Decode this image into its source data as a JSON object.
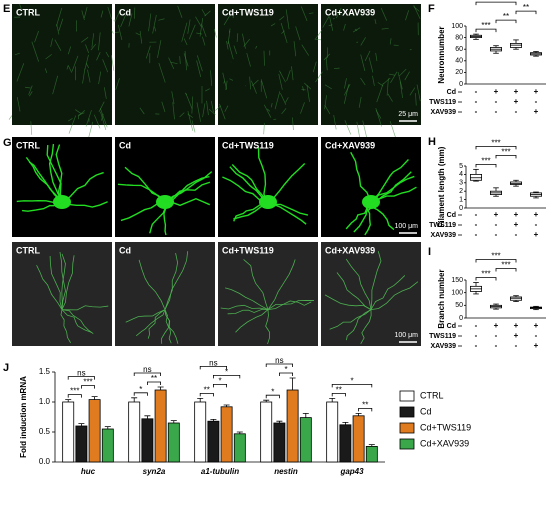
{
  "panel_labels": [
    "E",
    "F",
    "G",
    "H",
    "I",
    "J"
  ],
  "image_rows": [
    {
      "labels": [
        "CTRL",
        "Cd",
        "Cd+TWS119",
        "Cd+XAV939"
      ],
      "scale_bar": "25 μm"
    },
    {
      "labels": [
        "CTRL",
        "Cd",
        "Cd+TWS119",
        "Cd+XAV939"
      ],
      "scale_bar": "100 μm"
    },
    {
      "labels": [
        "CTRL",
        "Cd",
        "Cd+TWS119",
        "Cd+XAV939"
      ],
      "scale_bar": "100 μm"
    }
  ],
  "chart_data": [
    {
      "type": "box",
      "y_label": "Neuronnumber",
      "ylim": [
        0,
        100
      ],
      "yticks": [
        0,
        20,
        40,
        60,
        80,
        100
      ],
      "min": [
        77,
        53,
        60,
        48
      ],
      "q1": [
        80,
        57,
        63,
        50
      ],
      "median": [
        82,
        60,
        67,
        52
      ],
      "q3": [
        84,
        63,
        70,
        54
      ],
      "max": [
        86,
        66,
        76,
        56
      ],
      "conditions": [
        {
          "label": "Cd",
          "signs": [
            "-",
            "+",
            "+",
            "+"
          ]
        },
        {
          "label": "TWS119",
          "signs": [
            "-",
            "-",
            "+",
            "-"
          ]
        },
        {
          "label": "XAV939",
          "signs": [
            "-",
            "-",
            "-",
            "+"
          ]
        }
      ],
      "annotations": [
        {
          "text": "***",
          "between": [
            0,
            1
          ]
        },
        {
          "text": "**",
          "between": [
            1,
            2
          ]
        },
        {
          "text": "**",
          "between": [
            2,
            3
          ]
        },
        {
          "text": "***",
          "between": [
            0,
            2
          ]
        }
      ]
    },
    {
      "type": "box",
      "y_label": "Filament length (mm)",
      "ylim": [
        0,
        5
      ],
      "yticks": [
        0,
        1,
        2,
        3,
        4,
        5
      ],
      "min": [
        3.2,
        1.4,
        2.6,
        1.2
      ],
      "q1": [
        3.3,
        1.6,
        2.8,
        1.4
      ],
      "median": [
        3.6,
        1.8,
        2.9,
        1.6
      ],
      "q3": [
        4.0,
        2.0,
        3.1,
        1.8
      ],
      "max": [
        4.6,
        2.4,
        3.3,
        1.9
      ],
      "conditions": [
        {
          "label": "Cd",
          "signs": [
            "-",
            "+",
            "+",
            "+"
          ]
        },
        {
          "label": "TWS119",
          "signs": [
            "-",
            "-",
            "+",
            "-"
          ]
        },
        {
          "label": "XAV939",
          "signs": [
            "-",
            "-",
            "-",
            "+"
          ]
        }
      ],
      "annotations": [
        {
          "text": "***",
          "between": [
            0,
            1
          ]
        },
        {
          "text": "***",
          "between": [
            1,
            2
          ]
        },
        {
          "text": "***",
          "between": [
            0,
            2
          ]
        }
      ]
    },
    {
      "type": "box",
      "y_label": "Branch number",
      "ylim": [
        0,
        150
      ],
      "yticks": [
        0,
        50,
        100,
        150
      ],
      "min": [
        95,
        35,
        65,
        33
      ],
      "q1": [
        105,
        40,
        70,
        37
      ],
      "median": [
        115,
        45,
        78,
        40
      ],
      "q3": [
        125,
        50,
        83,
        43
      ],
      "max": [
        140,
        55,
        88,
        46
      ],
      "conditions": [
        {
          "label": "Cd",
          "signs": [
            "-",
            "+",
            "+",
            "+"
          ]
        },
        {
          "label": "TWS119",
          "signs": [
            "-",
            "-",
            "+",
            "-"
          ]
        },
        {
          "label": "XAV939",
          "signs": [
            "-",
            "-",
            "-",
            "+"
          ]
        }
      ],
      "annotations": [
        {
          "text": "***",
          "between": [
            0,
            1
          ]
        },
        {
          "text": "***",
          "between": [
            1,
            2
          ]
        },
        {
          "text": "***",
          "between": [
            0,
            2
          ]
        }
      ]
    },
    {
      "type": "bar",
      "y_label": "Fold induction mRNA",
      "ylim": [
        0,
        1.5
      ],
      "yticks": [
        {
          "value": 0,
          "label": "0.0"
        },
        0.5,
        {
          "value": 1,
          "label": "1.0"
        },
        1.5
      ],
      "categories": [
        "huc",
        "syn2a",
        "a1-tubulin",
        "nestin",
        "gap43"
      ],
      "series": [
        {
          "name": "CTRL",
          "color": "#ffffff",
          "values": [
            1.0,
            1.0,
            1.0,
            1.0,
            1.0
          ],
          "errors": [
            0.04,
            0.07,
            0.06,
            0.03,
            0.06
          ]
        },
        {
          "name": "Cd",
          "color": "#1a1a1a",
          "values": [
            0.6,
            0.72,
            0.68,
            0.65,
            0.62
          ],
          "errors": [
            0.04,
            0.05,
            0.03,
            0.03,
            0.04
          ]
        },
        {
          "name": "Cd+TWS119",
          "color": "#e07b20",
          "values": [
            1.04,
            1.2,
            0.92,
            1.2,
            0.77
          ],
          "errors": [
            0.05,
            0.05,
            0.03,
            0.2,
            0.04
          ]
        },
        {
          "name": "Cd+XAV939",
          "color": "#3aa84a",
          "values": [
            0.55,
            0.65,
            0.47,
            0.74,
            0.26
          ],
          "errors": [
            0.04,
            0.04,
            0.03,
            0.07,
            0.03
          ]
        }
      ],
      "annotations": [
        [
          {
            "text": "***",
            "between": [
              0,
              1
            ]
          },
          {
            "text": "***",
            "between": [
              1,
              2
            ]
          },
          {
            "text": "ns",
            "between": [
              0,
              2
            ]
          }
        ],
        [
          {
            "text": "*",
            "between": [
              0,
              1
            ]
          },
          {
            "text": "**",
            "between": [
              1,
              2
            ]
          },
          {
            "text": "ns",
            "between": [
              0,
              2
            ]
          }
        ],
        [
          {
            "text": "**",
            "between": [
              0,
              1
            ]
          },
          {
            "text": "*",
            "between": [
              1,
              2
            ]
          },
          {
            "text": "*",
            "between": [
              1,
              3
            ]
          },
          {
            "text": "ns",
            "between": [
              0,
              2
            ]
          }
        ],
        [
          {
            "text": "*",
            "between": [
              0,
              1
            ]
          },
          {
            "text": "*",
            "between": [
              1,
              2
            ]
          },
          {
            "text": "ns",
            "between": [
              0,
              2
            ]
          }
        ],
        [
          {
            "text": "**",
            "between": [
              0,
              1
            ]
          },
          {
            "text": "**",
            "between": [
              2,
              3
            ]
          },
          {
            "text": "*",
            "between": [
              0,
              3
            ]
          }
        ]
      ]
    }
  ]
}
